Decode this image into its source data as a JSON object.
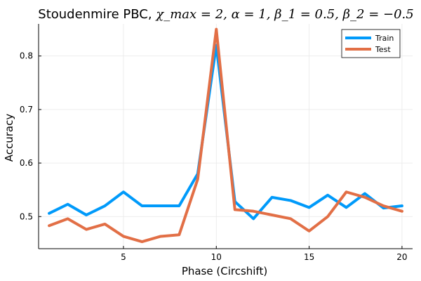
{
  "chart_data": {
    "type": "line",
    "title": {
      "prefix": "Stoudenmire PBC, ",
      "math": "χ_max = 2, α = 1, β_1 = 0.5, β_2 = −0.5"
    },
    "xlabel": "Phase (Circshift)",
    "ylabel": "Accuracy",
    "xlim": [
      0.43,
      20.57
    ],
    "ylim": [
      0.44,
      0.86
    ],
    "xticks": [
      5,
      10,
      15,
      20
    ],
    "yticks": [
      0.5,
      0.6,
      0.7,
      0.8
    ],
    "ytick_labels": [
      "0.5",
      "0.6",
      "0.7",
      "0.8"
    ],
    "grid": true,
    "legend_position": "top-right",
    "x": [
      1,
      2,
      3,
      4,
      5,
      6,
      7,
      8,
      9,
      10,
      11,
      12,
      13,
      14,
      15,
      16,
      17,
      18,
      19,
      20
    ],
    "series": [
      {
        "name": "Train",
        "color": "#009AFA",
        "values": [
          0.506,
          0.523,
          0.503,
          0.52,
          0.546,
          0.52,
          0.52,
          0.52,
          0.58,
          0.82,
          0.528,
          0.496,
          0.536,
          0.53,
          0.517,
          0.54,
          0.517,
          0.543,
          0.516,
          0.52
        ]
      },
      {
        "name": "Test",
        "color": "#E26F46",
        "values": [
          0.483,
          0.496,
          0.476,
          0.486,
          0.463,
          0.453,
          0.463,
          0.466,
          0.57,
          0.85,
          0.513,
          0.51,
          0.503,
          0.496,
          0.473,
          0.5,
          0.546,
          0.536,
          0.52,
          0.51
        ]
      }
    ]
  }
}
